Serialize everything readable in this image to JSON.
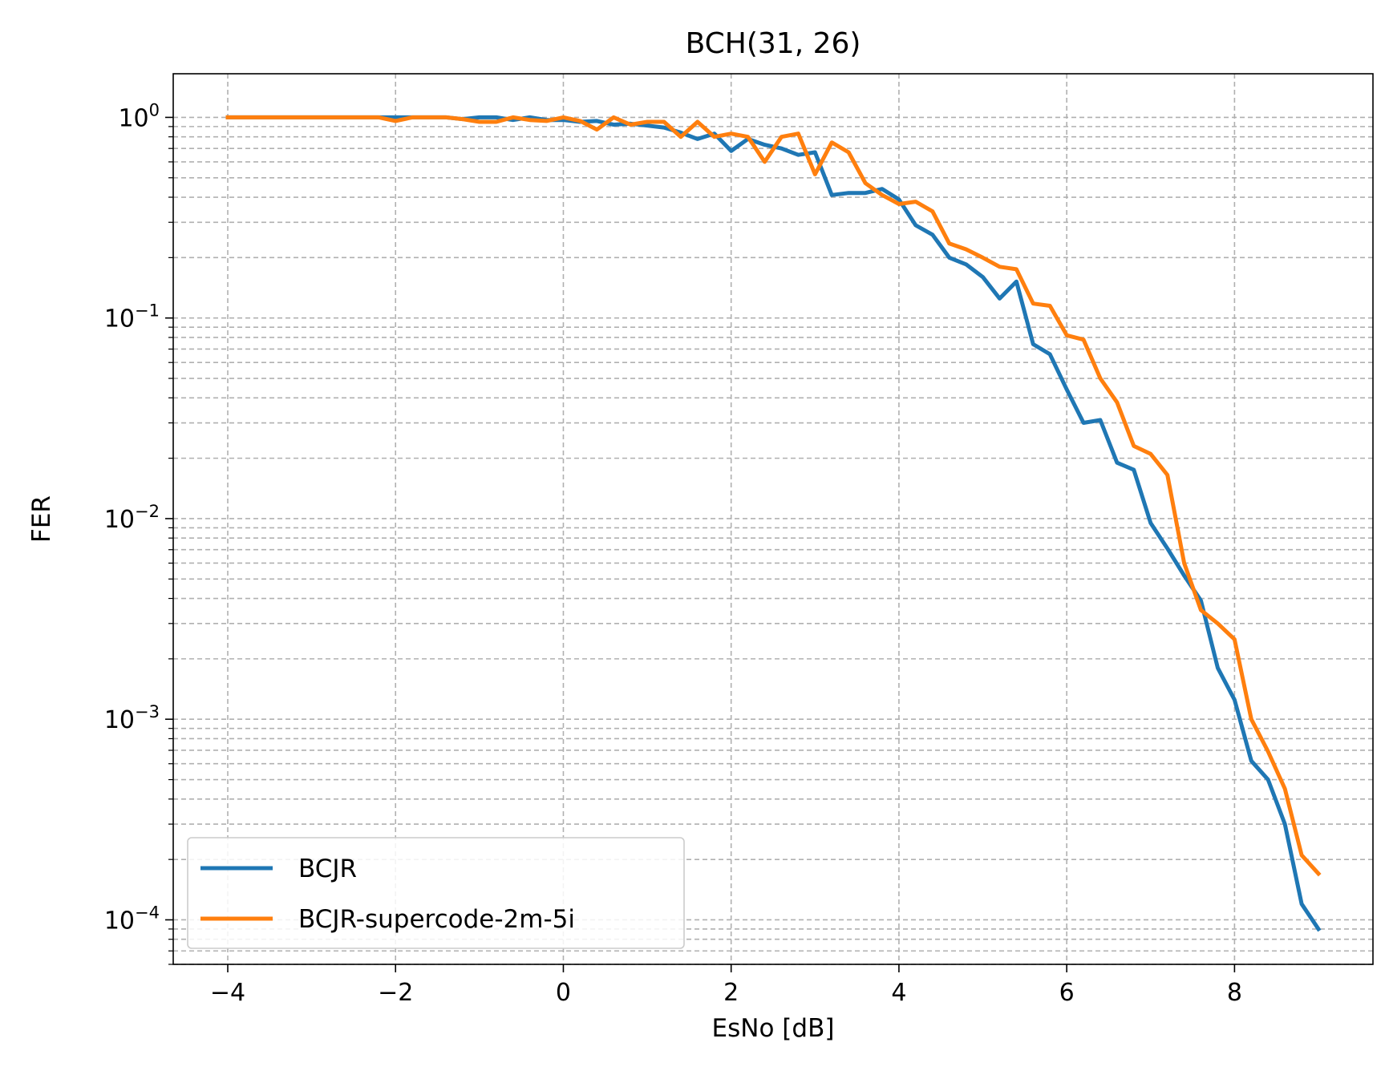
{
  "chart_data": {
    "type": "line",
    "title": "BCH(31, 26)",
    "xlabel": "EsNo [dB]",
    "ylabel": "FER",
    "xlim": [
      -4.65,
      9.65
    ],
    "ylim": [
      6e-05,
      1.65
    ],
    "yscale": "log",
    "grid": true,
    "legend_position": "lower-left",
    "x_ticks": [
      -4,
      -2,
      0,
      2,
      4,
      6,
      8
    ],
    "x_tick_labels": [
      "−4",
      "−2",
      "0",
      "2",
      "4",
      "6",
      "8"
    ],
    "y_ticks": [
      1,
      0.1,
      0.01,
      0.001,
      0.0001
    ],
    "y_tick_labels": [
      {
        "base": "10",
        "exp": "0"
      },
      {
        "base": "10",
        "exp": "−1"
      },
      {
        "base": "10",
        "exp": "−2"
      },
      {
        "base": "10",
        "exp": "−3"
      },
      {
        "base": "10",
        "exp": "−4"
      }
    ],
    "series": [
      {
        "name": "BCJR",
        "color": "#1f77b4",
        "x": [
          -4.0,
          -3.8,
          -3.6,
          -3.4,
          -3.2,
          -3.0,
          -2.8,
          -2.6,
          -2.4,
          -2.2,
          -2.0,
          -1.8,
          -1.6,
          -1.4,
          -1.2,
          -1.0,
          -0.8,
          -0.6,
          -0.4,
          -0.2,
          0.0,
          0.2,
          0.4,
          0.6,
          0.8,
          1.0,
          1.2,
          1.4,
          1.6,
          1.8,
          2.0,
          2.2,
          2.4,
          2.6,
          2.8,
          3.0,
          3.2,
          3.4,
          3.6,
          3.8,
          4.0,
          4.2,
          4.4,
          4.6,
          4.8,
          5.0,
          5.2,
          5.4,
          5.6,
          5.8,
          6.0,
          6.2,
          6.4,
          6.6,
          6.8,
          7.0,
          7.2,
          7.4,
          7.6,
          7.8,
          8.0,
          8.2,
          8.4,
          8.6,
          8.8,
          9.0
        ],
        "values": [
          1.0,
          1.0,
          1.0,
          1.0,
          1.0,
          1.0,
          1.0,
          1.0,
          1.0,
          1.0,
          1.0,
          1.0,
          1.0,
          1.0,
          0.98,
          1.0,
          1.0,
          0.97,
          1.0,
          0.97,
          0.97,
          0.95,
          0.96,
          0.92,
          0.93,
          0.91,
          0.89,
          0.84,
          0.78,
          0.83,
          0.68,
          0.78,
          0.73,
          0.7,
          0.65,
          0.67,
          0.41,
          0.42,
          0.42,
          0.44,
          0.39,
          0.29,
          0.26,
          0.2,
          0.185,
          0.16,
          0.125,
          0.152,
          0.074,
          0.066,
          0.044,
          0.03,
          0.031,
          0.019,
          0.0175,
          0.0095,
          0.0071,
          0.0052,
          0.0039,
          0.0018,
          0.00125,
          0.00062,
          0.0005,
          0.0003,
          0.00012,
          9e-05
        ]
      },
      {
        "name": "BCJR-supercode-2m-5i",
        "color": "#ff7f0e",
        "x": [
          -4.0,
          -3.8,
          -3.6,
          -3.4,
          -3.2,
          -3.0,
          -2.8,
          -2.6,
          -2.4,
          -2.2,
          -2.0,
          -1.8,
          -1.6,
          -1.4,
          -1.2,
          -1.0,
          -0.8,
          -0.6,
          -0.4,
          -0.2,
          0.0,
          0.2,
          0.4,
          0.6,
          0.8,
          1.0,
          1.2,
          1.4,
          1.6,
          1.8,
          2.0,
          2.2,
          2.4,
          2.6,
          2.8,
          3.0,
          3.2,
          3.4,
          3.6,
          3.8,
          4.0,
          4.2,
          4.4,
          4.6,
          4.8,
          5.0,
          5.2,
          5.4,
          5.6,
          5.8,
          6.0,
          6.2,
          6.4,
          6.6,
          6.8,
          7.0,
          7.2,
          7.4,
          7.6,
          7.8,
          8.0,
          8.2,
          8.4,
          8.6,
          8.8,
          9.0
        ],
        "values": [
          1.0,
          1.0,
          1.0,
          1.0,
          1.0,
          1.0,
          1.0,
          1.0,
          1.0,
          1.0,
          0.96,
          1.0,
          1.0,
          1.0,
          0.98,
          0.95,
          0.95,
          1.0,
          0.97,
          0.96,
          1.0,
          0.96,
          0.87,
          1.0,
          0.92,
          0.95,
          0.95,
          0.8,
          0.95,
          0.8,
          0.83,
          0.8,
          0.6,
          0.8,
          0.83,
          0.52,
          0.75,
          0.67,
          0.47,
          0.41,
          0.37,
          0.38,
          0.34,
          0.235,
          0.22,
          0.2,
          0.18,
          0.175,
          0.118,
          0.115,
          0.082,
          0.078,
          0.05,
          0.038,
          0.023,
          0.021,
          0.0165,
          0.006,
          0.0035,
          0.003,
          0.0025,
          0.001,
          0.00069,
          0.00045,
          0.00021,
          0.00017
        ]
      }
    ]
  }
}
